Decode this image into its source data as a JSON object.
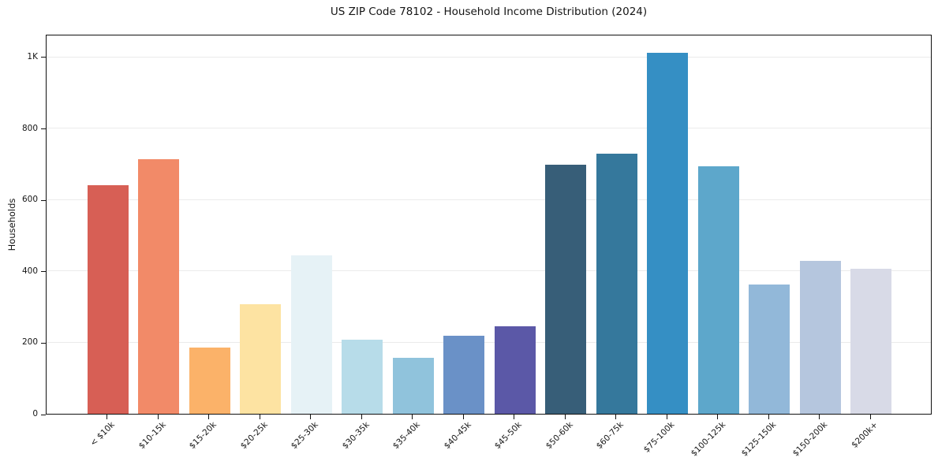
{
  "chart_data": {
    "type": "bar",
    "title": "US ZIP Code 78102 - Household Income Distribution (2024)",
    "xlabel": "",
    "ylabel": "Households",
    "categories": [
      "< $10k",
      "$10-15k",
      "$15-20k",
      "$20-25k",
      "$25-30k",
      "$30-35k",
      "$35-40k",
      "$40-45k",
      "$45-50k",
      "$50-60k",
      "$60-75k",
      "$75-100k",
      "$100-125k",
      "$125-150k",
      "$150-200k",
      "$200k+"
    ],
    "values": [
      640,
      713,
      186,
      307,
      443,
      207,
      157,
      219,
      244,
      697,
      729,
      1012,
      693,
      363,
      428,
      407
    ],
    "bar_colors": [
      "#d75f55",
      "#f28a68",
      "#fbb269",
      "#fde3a2",
      "#e6f2f6",
      "#b7dce9",
      "#90c3dc",
      "#6a91c7",
      "#5b58a7",
      "#375e78",
      "#35789c",
      "#358fc4",
      "#5da7cb",
      "#92b8d9",
      "#b5c6de",
      "#d8dae7"
    ],
    "yticks": {
      "values": [
        0,
        200,
        400,
        600,
        800,
        1000
      ],
      "labels": [
        "0",
        "200",
        "400",
        "600",
        "800",
        "1K"
      ]
    },
    "ylim": [
      0,
      1064
    ],
    "grid": "horizontal",
    "gridline_color": "#ebebeb",
    "axis_color": "#111111",
    "text_color": "#151515",
    "background": "#ffffff",
    "legend": "none"
  }
}
